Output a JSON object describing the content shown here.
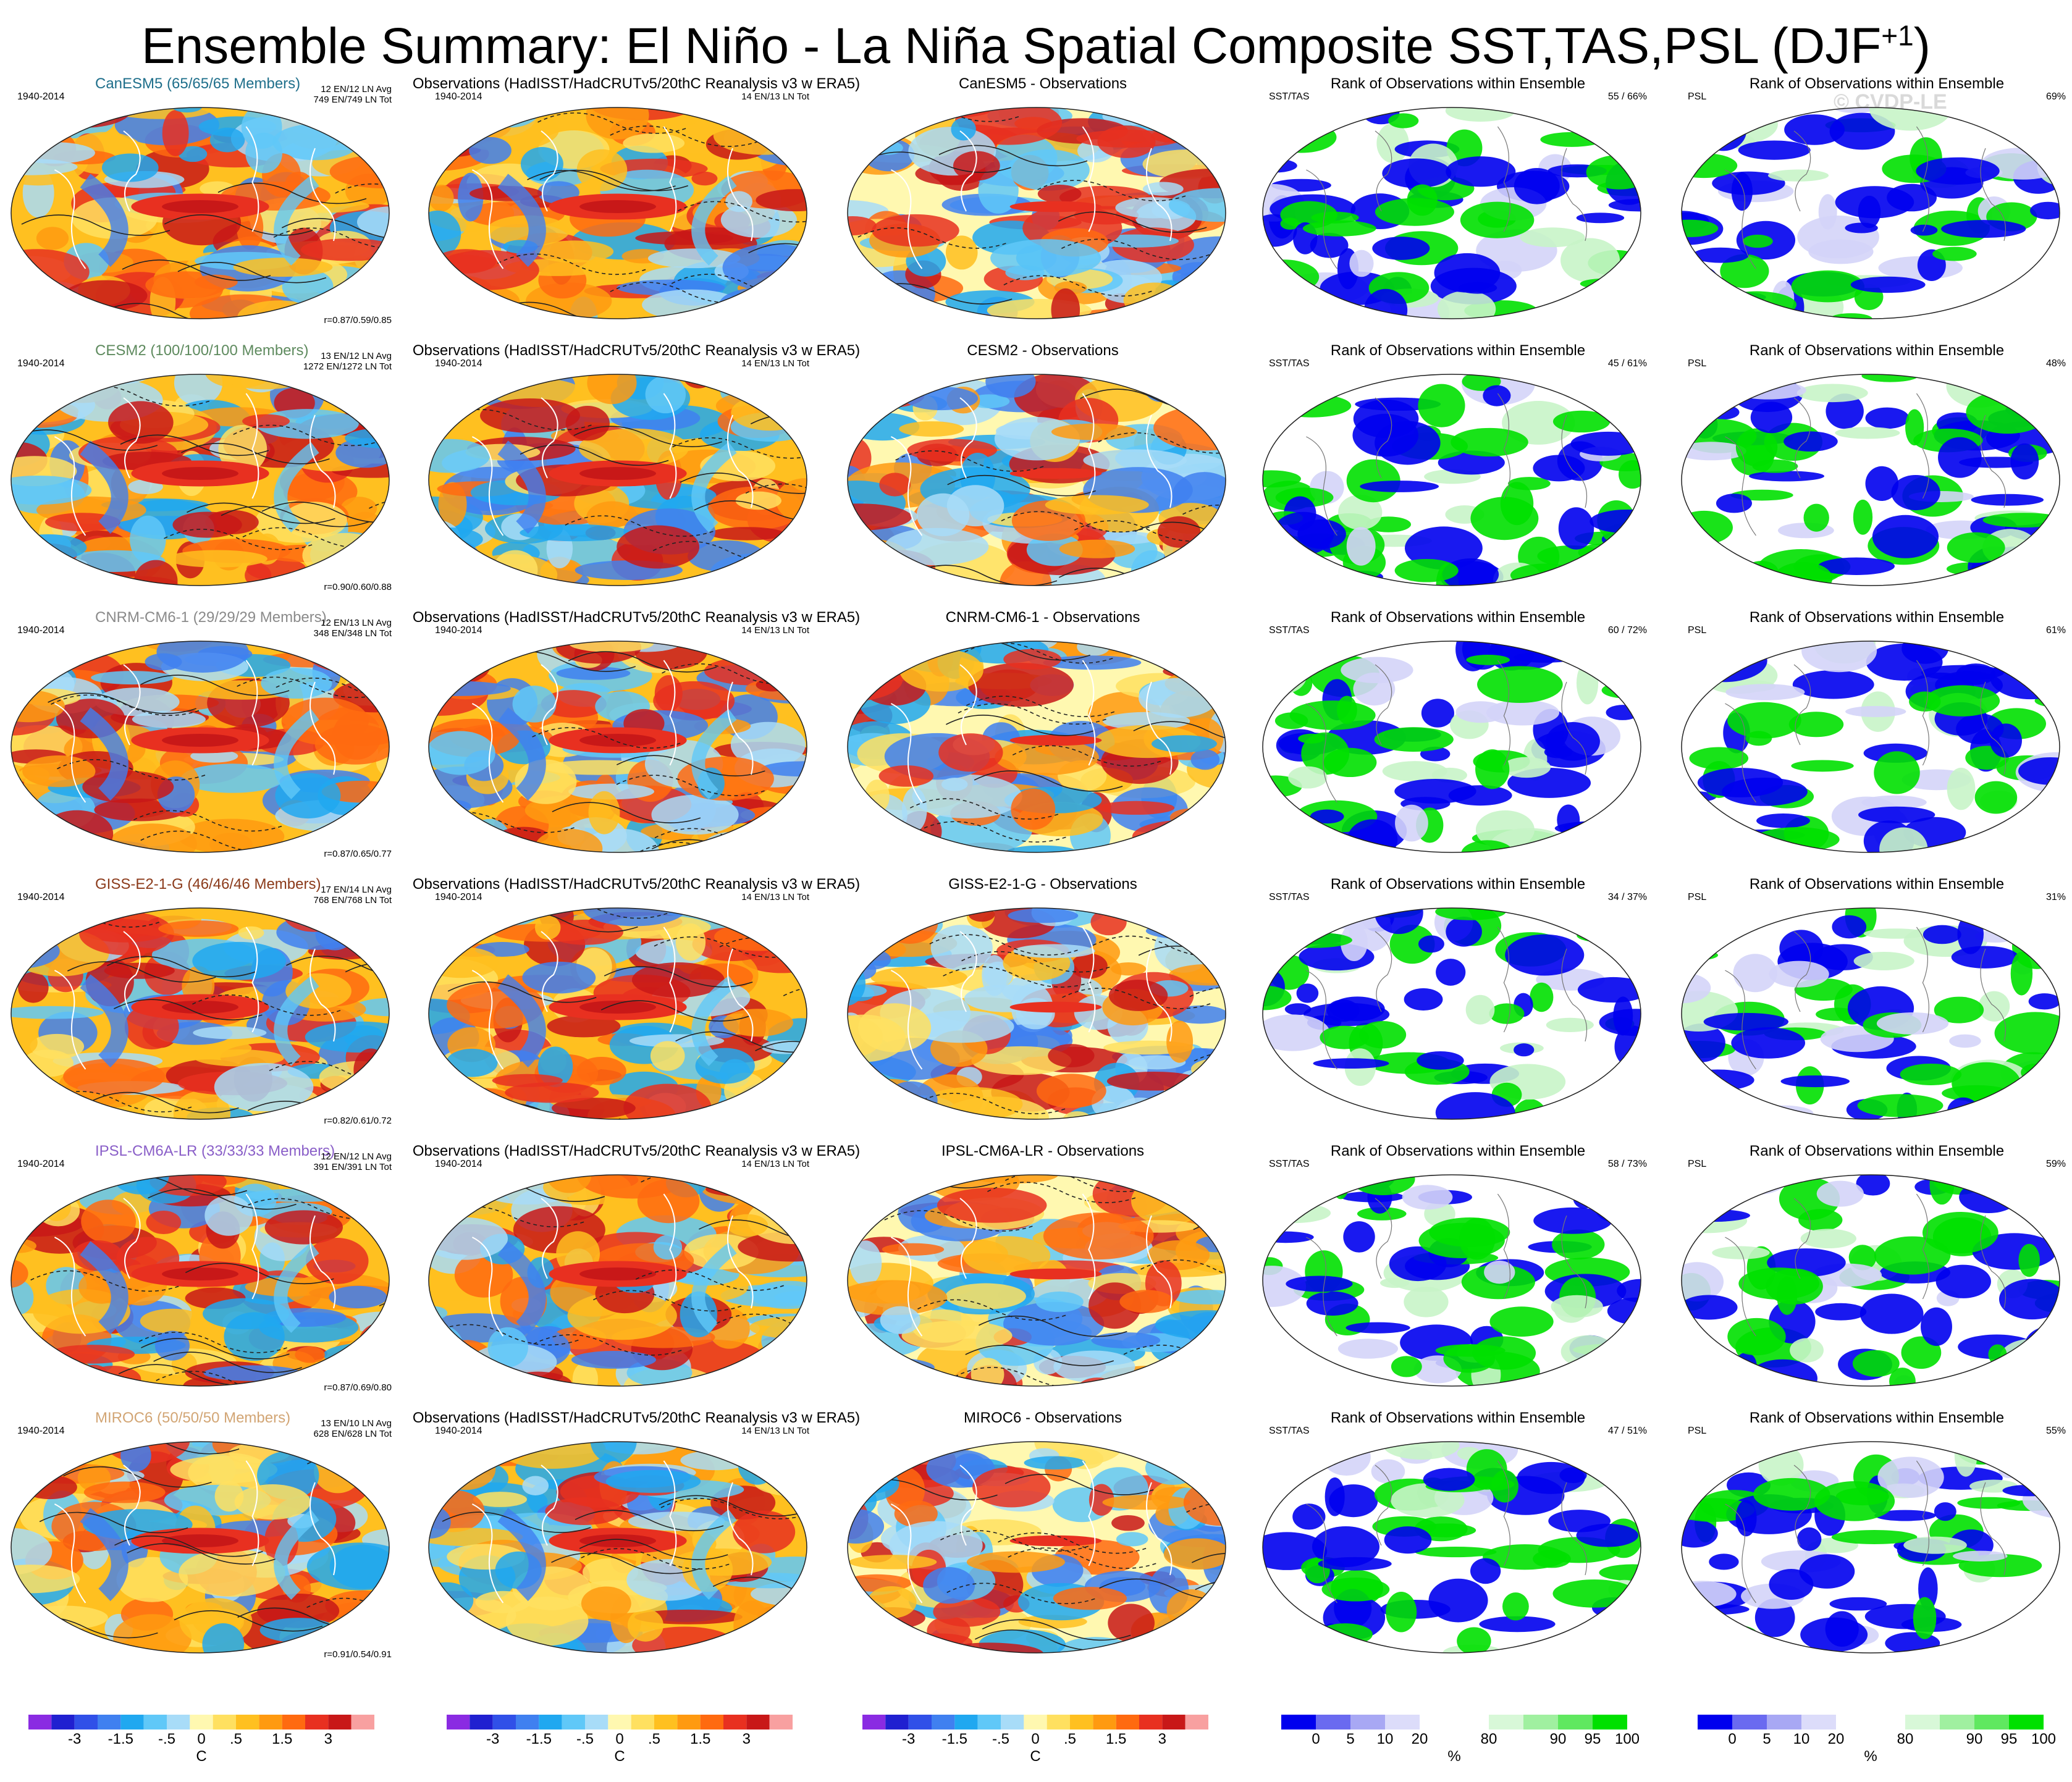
{
  "title": "Ensemble Summary: El Niño - La Niña Spatial Composite SST,TAS,PSL (DJF",
  "title_sup": "+1",
  "title_close": ")",
  "watermark": "© CVDP-LE",
  "rows": [
    {
      "model_title": "CanESM5 (65/65/65 Members)",
      "model_color": "#1f6f8b",
      "years": "1940-2014",
      "cnt1": "12 EN/12 LN Avg",
      "cnt2": "749 EN/749 LN Tot",
      "r": "r=0.87/0.59/0.85",
      "obs_cnt": "14 EN/13 LN Tot",
      "diff_title": "CanESM5 - Observations",
      "sst_pct": "55 /  66%",
      "psl_pct": "69%"
    },
    {
      "model_title": "CESM2 (100/100/100 Members)",
      "model_color": "#5e8a5e",
      "years": "1940-2014",
      "cnt1": "13 EN/12 LN Avg",
      "cnt2": "1272 EN/1272 LN Tot",
      "r": "r=0.90/0.60/0.88",
      "obs_cnt": "14 EN/13 LN Tot",
      "diff_title": "CESM2 - Observations",
      "sst_pct": "45 /  61%",
      "psl_pct": "48%"
    },
    {
      "model_title": "CNRM-CM6-1 (29/29/29 Members)",
      "model_color": "#8a8a8a",
      "years": "1940-2014",
      "cnt1": "12 EN/13 LN Avg",
      "cnt2": "348 EN/348 LN Tot",
      "r": "r=0.87/0.65/0.77",
      "obs_cnt": "14 EN/13 LN Tot",
      "diff_title": "CNRM-CM6-1 - Observations",
      "sst_pct": "60 /  72%",
      "psl_pct": "61%"
    },
    {
      "model_title": "GISS-E2-1-G (46/46/46 Members)",
      "model_color": "#8b3a1a",
      "years": "1940-2014",
      "cnt1": "17 EN/14 LN Avg",
      "cnt2": "768 EN/768 LN Tot",
      "r": "r=0.82/0.61/0.72",
      "obs_cnt": "14 EN/13 LN Tot",
      "diff_title": "GISS-E2-1-G - Observations",
      "sst_pct": "34 /  37%",
      "psl_pct": "31%"
    },
    {
      "model_title": "IPSL-CM6A-LR (33/33/33 Members)",
      "model_color": "#8a5fc8",
      "years": "1940-2014",
      "cnt1": "12 EN/12 LN Avg",
      "cnt2": "391 EN/391 LN Tot",
      "r": "r=0.87/0.69/0.80",
      "obs_cnt": "14 EN/13 LN Tot",
      "diff_title": "IPSL-CM6A-LR - Observations",
      "sst_pct": "58 /  73%",
      "psl_pct": "59%"
    },
    {
      "model_title": "MIROC6 (50/50/50 Members)",
      "model_color": "#d2a574",
      "years": "1940-2014",
      "cnt1": "13 EN/10 LN Avg",
      "cnt2": "628 EN/628 LN Tot",
      "r": "r=0.91/0.54/0.91",
      "obs_cnt": "14 EN/13 LN Tot",
      "diff_title": "MIROC6 - Observations",
      "sst_pct": "47 /  51%",
      "psl_pct": "55%"
    }
  ],
  "obs_title": "Observations (HadISST/HadCRUTv5/20thC Reanalysis v3 w ERA5)",
  "obs_years": "1940-2014",
  "rank_title": "Rank of Observations within Ensemble",
  "sst_tag": "SST/TAS",
  "psl_tag": "PSL",
  "temp_colorbar": {
    "colors": [
      "#8a2be2",
      "#2020d0",
      "#3050e8",
      "#4080f0",
      "#20a8f0",
      "#60c8f8",
      "#a8dcf8",
      "#fff8b0",
      "#ffe060",
      "#ffc020",
      "#ff9a10",
      "#ff6a10",
      "#e83020",
      "#c81818",
      "#f8a0a0"
    ],
    "ticks": [
      "-3",
      "-1.5",
      "-.5",
      "0",
      ".5",
      "1.5",
      "3"
    ],
    "unit": "C"
  },
  "rank_colorbar": {
    "colors": [
      "#0000ee",
      "#6a6af0",
      "#a8a8f4",
      "#dcdcfa",
      "#ffffff",
      "#ffffff",
      "#d8f8d8",
      "#a0f0a0",
      "#60e860",
      "#00e000"
    ],
    "ticks": [
      "0",
      "5",
      "10",
      "20",
      "80",
      "90",
      "95",
      "100"
    ],
    "unit": "%"
  },
  "map_palette": {
    "ocean_warm": [
      "#ffe060",
      "#ffc020",
      "#ff9a10",
      "#ff6a10",
      "#e83020",
      "#c81818"
    ],
    "ocean_cool": [
      "#a8dcf8",
      "#60c8f8",
      "#20a8f0",
      "#4080f0"
    ],
    "neutral": "#fff8b0",
    "rank_low": "#0000ee",
    "rank_high": "#00e000"
  }
}
